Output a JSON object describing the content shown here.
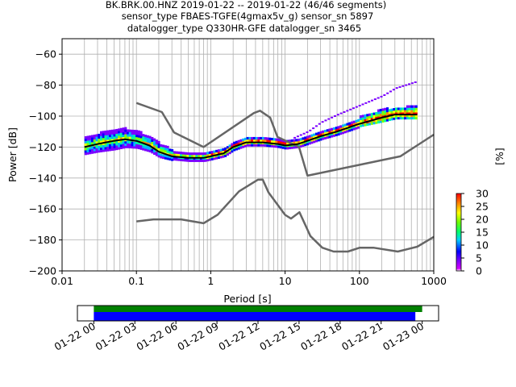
{
  "chart_data": [
    {
      "type": "heatmap",
      "title": [
        "BK.BRK.00.HNZ   2019-01-22 -- 2019-01-22  (46/46 segments)",
        "sensor_type FBAES-TGFE(4gmax5v_g) sensor_sn 5897",
        "datalogger_type Q330HR-GFE datalogger_sn 3465"
      ],
      "xlabel": "Period [s]",
      "ylabel": "Power [dB]",
      "xscale": "log",
      "xlim": [
        0.01,
        1000
      ],
      "ylim": [
        -200,
        -50
      ],
      "grid": true,
      "xticks": [
        {
          "v": 0.01,
          "label": "0.01"
        },
        {
          "v": 0.1,
          "label": "0.1"
        },
        {
          "v": 1,
          "label": "1"
        },
        {
          "v": 10,
          "label": "10"
        },
        {
          "v": 100,
          "label": "100"
        },
        {
          "v": 1000,
          "label": "1000"
        }
      ],
      "yticks": [
        {
          "v": -60,
          "label": "−60"
        },
        {
          "v": -80,
          "label": "−80"
        },
        {
          "v": -100,
          "label": "−100"
        },
        {
          "v": -120,
          "label": "−120"
        },
        {
          "v": -140,
          "label": "−140"
        },
        {
          "v": -160,
          "label": "−160"
        },
        {
          "v": -180,
          "label": "−180"
        },
        {
          "v": -200,
          "label": "−200"
        }
      ],
      "colorbar": {
        "label": "[%]",
        "range": [
          0,
          30
        ],
        "ticks": [
          {
            "v": 0,
            "label": "0"
          },
          {
            "v": 5,
            "label": "5"
          },
          {
            "v": 10,
            "label": "10"
          },
          {
            "v": 15,
            "label": "15"
          },
          {
            "v": 20,
            "label": "20"
          },
          {
            "v": 25,
            "label": "25"
          },
          {
            "v": 30,
            "label": "30"
          }
        ]
      },
      "noise_models": [
        {
          "name": "high",
          "x": [
            0.1,
            0.22,
            0.32,
            0.8,
            3.8,
            4.6,
            6.3,
            7.9,
            15.4,
            20,
            354.8,
            1000
          ],
          "y": [
            -91.5,
            -97.4,
            -110.5,
            -120,
            -98,
            -96.5,
            -101,
            -113.5,
            -120,
            -138.5,
            -126,
            -112
          ]
        },
        {
          "name": "low",
          "x": [
            0.1,
            0.17,
            0.4,
            0.8,
            1.24,
            2.4,
            4.3,
            5,
            6,
            10,
            12,
            15.6,
            21.9,
            31.6,
            45,
            70,
            101,
            154,
            328,
            600,
            1000
          ],
          "y": [
            -168,
            -166.7,
            -166.7,
            -169.2,
            -163.7,
            -148.6,
            -141.1,
            -141,
            -149.4,
            -163.8,
            -166.2,
            -162.1,
            -177.5,
            -185,
            -187.5,
            -187.5,
            -185,
            -185,
            -187.5,
            -184.4,
            -178
          ]
        }
      ],
      "pdf_mode": {
        "x": [
          0.02,
          0.03,
          0.05,
          0.07,
          0.1,
          0.15,
          0.2,
          0.3,
          0.5,
          0.8,
          1.0,
          1.5,
          2,
          3,
          5,
          8,
          10,
          15,
          20,
          30,
          50,
          100,
          200,
          300,
          600
        ],
        "y": [
          -120,
          -118,
          -116,
          -115,
          -116,
          -119,
          -123,
          -126,
          -127,
          -127,
          -126,
          -124,
          -120,
          -117,
          -117,
          -118,
          -119,
          -118,
          -116,
          -113,
          -110,
          -105,
          -101,
          -99,
          -99
        ]
      },
      "pdf_spread": [
        {
          "x": [
            0.02,
            0.05,
            0.1,
            0.2,
            0.3
          ],
          "up": [
            6,
            7,
            6,
            5,
            4
          ],
          "down": [
            5,
            6,
            5,
            4,
            3
          ]
        },
        {
          "x": [
            100,
            200,
            300,
            600
          ],
          "up": [
            4,
            5,
            4,
            5
          ],
          "down": [
            2,
            3,
            3,
            3
          ]
        }
      ],
      "pdf_outlier": {
        "x": [
          13,
          20,
          30,
          50,
          100,
          200,
          300,
          600
        ],
        "y": [
          -114,
          -110,
          -104,
          -99,
          -93,
          -87,
          -82,
          -77.5
        ]
      }
    },
    {
      "type": "bar",
      "xticks": [
        "01-22 00",
        "01-22 03",
        "01-22 06",
        "01-22 09",
        "01-22 12",
        "01-22 15",
        "01-22 18",
        "01-22 21",
        "01-23 00"
      ],
      "xlim_hours": [
        -1.2,
        25.2
      ],
      "series": [
        {
          "color": "#008000",
          "start_hour": 0,
          "end_hour": 24.0
        },
        {
          "color": "#0000ff",
          "start_hour": 0,
          "end_hour": 23.5
        }
      ]
    }
  ]
}
